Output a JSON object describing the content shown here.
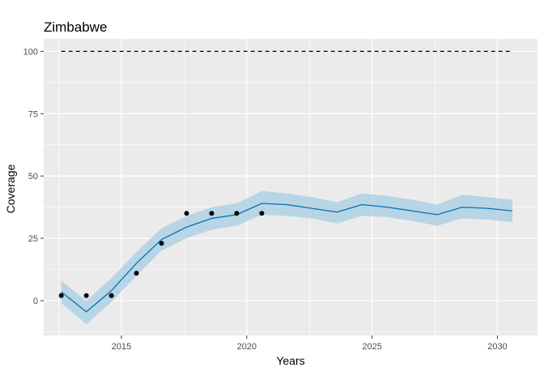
{
  "chart_data": {
    "type": "line",
    "title": "Zimbabwe",
    "xlabel": "Years",
    "ylabel": "Coverage",
    "xlim": [
      2011.9,
      2031.6
    ],
    "ylim": [
      -14,
      105
    ],
    "x_ticks": [
      2015,
      2020,
      2025,
      2030
    ],
    "y_ticks": [
      0,
      25,
      50,
      75,
      100
    ],
    "x_tick_labels": [
      "2015",
      "2020",
      "2025",
      "2030"
    ],
    "y_tick_labels": [
      "0",
      "25",
      "50",
      "75",
      "100"
    ],
    "grid": true,
    "background": "#EBEBEB",
    "target": {
      "style": "dashed",
      "color": "#000000",
      "x": [
        2012.6,
        2030.6
      ],
      "y": 100
    },
    "forecast": {
      "color": "#0072B2",
      "band_color": "#A6CEE3",
      "x": [
        2012.6,
        2013.6,
        2014.6,
        2015.6,
        2016.6,
        2017.6,
        2018.6,
        2019.6,
        2020.6,
        2021.6,
        2022.6,
        2023.6,
        2024.6,
        2025.6,
        2026.6,
        2027.6,
        2028.6,
        2029.6,
        2030.6
      ],
      "y": [
        3.5,
        -4.5,
        4.0,
        15.0,
        24.5,
        29.5,
        33.0,
        34.5,
        39.0,
        38.5,
        37.0,
        35.5,
        38.5,
        37.5,
        36.0,
        34.5,
        37.5,
        37.0,
        36.0
      ],
      "lower": [
        -1.0,
        -9.5,
        -0.5,
        10.0,
        20.0,
        25.0,
        28.5,
        30.0,
        34.5,
        34.0,
        33.0,
        31.0,
        34.0,
        33.5,
        32.0,
        30.0,
        33.0,
        32.5,
        31.5
      ],
      "upper": [
        8.0,
        0.0,
        9.0,
        19.5,
        29.0,
        34.0,
        37.5,
        39.0,
        44.0,
        43.0,
        41.5,
        39.5,
        43.0,
        42.0,
        40.5,
        38.5,
        42.5,
        41.5,
        40.5
      ]
    },
    "observed": {
      "color": "#000000",
      "x": [
        2012.6,
        2013.6,
        2014.6,
        2015.6,
        2016.6,
        2017.6,
        2018.6,
        2019.6,
        2020.6
      ],
      "y": [
        2,
        2,
        2,
        11,
        23,
        35,
        35,
        35,
        35
      ]
    }
  }
}
